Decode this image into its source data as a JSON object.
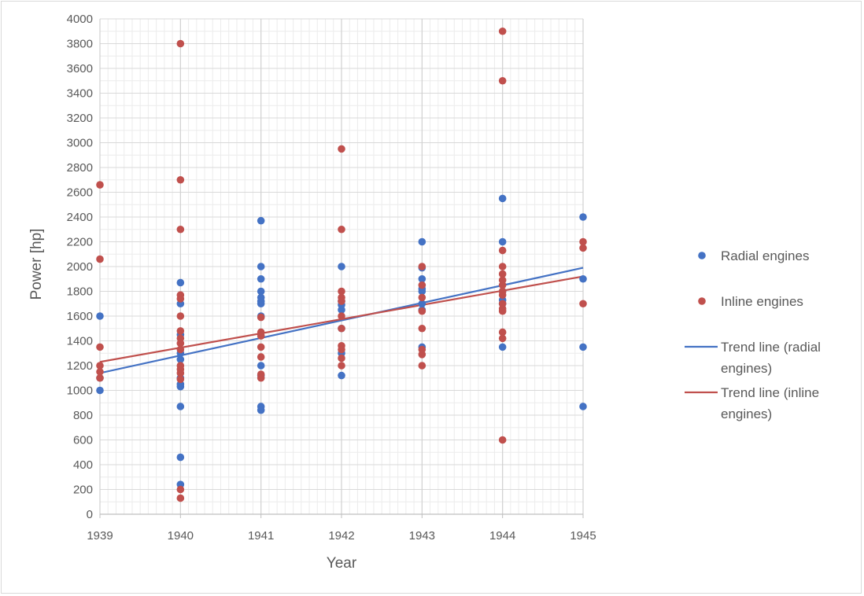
{
  "chart_data": {
    "type": "scatter",
    "title": "",
    "xlabel": "Year",
    "ylabel": "Power [hp]",
    "xlim": [
      1939,
      1945
    ],
    "ylim": [
      0,
      4000
    ],
    "x_ticks": [
      1939,
      1940,
      1941,
      1942,
      1943,
      1944,
      1945
    ],
    "y_ticks": [
      0,
      200,
      400,
      600,
      800,
      1000,
      1200,
      1400,
      1600,
      1800,
      2000,
      2200,
      2400,
      2600,
      2800,
      3000,
      3200,
      3400,
      3600,
      3800,
      4000
    ],
    "grid": {
      "major_vertical": true,
      "minor_vertical": true,
      "horizontal": true
    },
    "legend": {
      "position": "right"
    },
    "series": [
      {
        "name": "Radial engines",
        "kind": "scatter",
        "color": "#4472c4",
        "points": [
          [
            1939,
            1600
          ],
          [
            1939,
            1000
          ],
          [
            1939,
            1100
          ],
          [
            1940,
            1870
          ],
          [
            1940,
            1700
          ],
          [
            1940,
            1450
          ],
          [
            1940,
            1300
          ],
          [
            1940,
            1250
          ],
          [
            1940,
            1100
          ],
          [
            1940,
            1050
          ],
          [
            1940,
            1030
          ],
          [
            1940,
            870
          ],
          [
            1940,
            460
          ],
          [
            1940,
            240
          ],
          [
            1941,
            2370
          ],
          [
            1941,
            2000
          ],
          [
            1941,
            1900
          ],
          [
            1941,
            1800
          ],
          [
            1941,
            1750
          ],
          [
            1941,
            1720
          ],
          [
            1941,
            1700
          ],
          [
            1941,
            1600
          ],
          [
            1941,
            1200
          ],
          [
            1941,
            1120
          ],
          [
            1941,
            870
          ],
          [
            1941,
            840
          ],
          [
            1942,
            2000
          ],
          [
            1942,
            1720
          ],
          [
            1942,
            1690
          ],
          [
            1942,
            1650
          ],
          [
            1942,
            1500
          ],
          [
            1942,
            1300
          ],
          [
            1942,
            1120
          ],
          [
            1943,
            2200
          ],
          [
            1943,
            1990
          ],
          [
            1943,
            1900
          ],
          [
            1943,
            1820
          ],
          [
            1943,
            1800
          ],
          [
            1943,
            1700
          ],
          [
            1943,
            1650
          ],
          [
            1943,
            1350
          ],
          [
            1944,
            2550
          ],
          [
            1944,
            2200
          ],
          [
            1944,
            1800
          ],
          [
            1944,
            1730
          ],
          [
            1944,
            1700
          ],
          [
            1944,
            1350
          ],
          [
            1945,
            2400
          ],
          [
            1945,
            1900
          ],
          [
            1945,
            1350
          ],
          [
            1945,
            870
          ]
        ]
      },
      {
        "name": "Inline engines",
        "kind": "scatter",
        "color": "#c0504d",
        "points": [
          [
            1939,
            2660
          ],
          [
            1939,
            2060
          ],
          [
            1939,
            1350
          ],
          [
            1939,
            1200
          ],
          [
            1939,
            1150
          ],
          [
            1939,
            1100
          ],
          [
            1940,
            3800
          ],
          [
            1940,
            2700
          ],
          [
            1940,
            2300
          ],
          [
            1940,
            1770
          ],
          [
            1940,
            1740
          ],
          [
            1940,
            1600
          ],
          [
            1940,
            1480
          ],
          [
            1940,
            1420
          ],
          [
            1940,
            1380
          ],
          [
            1940,
            1330
          ],
          [
            1940,
            1200
          ],
          [
            1940,
            1170
          ],
          [
            1940,
            1140
          ],
          [
            1940,
            1090
          ],
          [
            1940,
            200
          ],
          [
            1940,
            130
          ],
          [
            1941,
            1590
          ],
          [
            1941,
            1470
          ],
          [
            1941,
            1440
          ],
          [
            1941,
            1350
          ],
          [
            1941,
            1270
          ],
          [
            1941,
            1130
          ],
          [
            1941,
            1100
          ],
          [
            1942,
            2950
          ],
          [
            1942,
            2300
          ],
          [
            1942,
            1800
          ],
          [
            1942,
            1750
          ],
          [
            1942,
            1720
          ],
          [
            1942,
            1600
          ],
          [
            1942,
            1500
          ],
          [
            1942,
            1360
          ],
          [
            1942,
            1330
          ],
          [
            1942,
            1260
          ],
          [
            1942,
            1200
          ],
          [
            1943,
            2000
          ],
          [
            1943,
            1850
          ],
          [
            1943,
            1750
          ],
          [
            1943,
            1640
          ],
          [
            1943,
            1500
          ],
          [
            1943,
            1330
          ],
          [
            1943,
            1290
          ],
          [
            1943,
            1200
          ],
          [
            1944,
            3900
          ],
          [
            1944,
            3500
          ],
          [
            1944,
            2130
          ],
          [
            1944,
            2000
          ],
          [
            1944,
            1940
          ],
          [
            1944,
            1890
          ],
          [
            1944,
            1850
          ],
          [
            1944,
            1800
          ],
          [
            1944,
            1770
          ],
          [
            1944,
            1700
          ],
          [
            1944,
            1660
          ],
          [
            1944,
            1640
          ],
          [
            1944,
            1470
          ],
          [
            1944,
            1420
          ],
          [
            1944,
            600
          ],
          [
            1945,
            2200
          ],
          [
            1945,
            2150
          ],
          [
            1945,
            1700
          ]
        ]
      },
      {
        "name": "Trend line (radial engines)",
        "kind": "line",
        "color": "#4472c4",
        "points": [
          [
            1939,
            1140
          ],
          [
            1945,
            1990
          ]
        ]
      },
      {
        "name": "Trend line (inline engines)",
        "kind": "line",
        "color": "#c0504d",
        "points": [
          [
            1939,
            1230
          ],
          [
            1945,
            1920
          ]
        ]
      }
    ]
  }
}
